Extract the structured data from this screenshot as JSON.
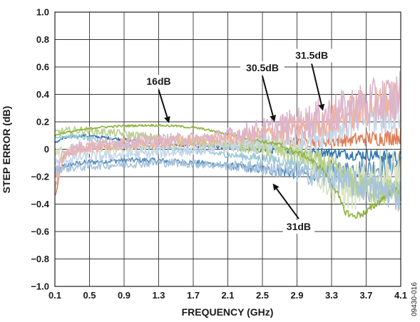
{
  "chart_data": {
    "type": "line",
    "title": "",
    "xlabel": "FREQUENCY (GHz)",
    "ylabel": "STEP ERROR (dB)",
    "xlim": [
      0.1,
      4.1
    ],
    "ylim": [
      -1.0,
      1.0
    ],
    "x_ticks": [
      "0.1",
      "0.5",
      "0.9",
      "1.3",
      "1.7",
      "2.1",
      "2.5",
      "2.9",
      "3.3",
      "3.7",
      "4.1"
    ],
    "y_ticks": [
      "1.0",
      "0.8",
      "0.6",
      "0.4",
      "0.2",
      "0",
      "−0.2",
      "−0.4",
      "−0.6",
      "−0.8",
      "−1.0"
    ],
    "grid": true,
    "legend": "none",
    "figure_id": "09430-016",
    "x": [
      0.1,
      0.2,
      0.4,
      0.6,
      0.9,
      1.2,
      1.5,
      1.8,
      2.1,
      2.4,
      2.7,
      3.0,
      3.2,
      3.35,
      3.45,
      3.55,
      3.7,
      3.85,
      4.0,
      4.1
    ],
    "series": [
      {
        "name": "16dB",
        "color": "#8db43c",
        "noise": 0.008,
        "values": [
          0.1,
          0.12,
          0.14,
          0.16,
          0.17,
          0.175,
          0.17,
          0.15,
          0.11,
          0.07,
          0.03,
          -0.05,
          -0.15,
          -0.3,
          -0.45,
          -0.49,
          -0.46,
          -0.38,
          -0.3,
          -0.3
        ]
      },
      {
        "name": "30.5dB",
        "color": "#f0b49c",
        "noise": 0.04,
        "values": [
          -0.3,
          -0.05,
          0.0,
          0.02,
          0.04,
          0.05,
          0.06,
          0.07,
          0.08,
          0.1,
          0.13,
          0.17,
          0.2,
          0.22,
          0.25,
          0.28,
          0.3,
          0.33,
          0.36,
          0.38
        ]
      },
      {
        "name": "31.5dB",
        "color": "#dcb4cc",
        "noise": 0.05,
        "values": [
          -0.2,
          -0.02,
          0.02,
          0.04,
          0.05,
          0.06,
          0.07,
          0.08,
          0.1,
          0.13,
          0.16,
          0.2,
          0.24,
          0.26,
          0.28,
          0.3,
          0.32,
          0.34,
          0.36,
          0.38
        ]
      },
      {
        "name": "31dB",
        "color": "#a7c3dc",
        "noise": 0.03,
        "values": [
          -0.15,
          -0.14,
          -0.13,
          -0.12,
          -0.11,
          -0.1,
          -0.1,
          -0.11,
          -0.12,
          -0.13,
          -0.15,
          -0.18,
          -0.2,
          -0.22,
          -0.24,
          -0.26,
          -0.28,
          -0.3,
          -0.32,
          -0.33
        ]
      }
    ],
    "background_series": [
      {
        "color": "#5b8fc0",
        "noise": 0.02,
        "values": [
          -0.2,
          -0.12,
          -0.1,
          -0.09,
          -0.08,
          -0.08,
          -0.09,
          -0.1,
          -0.12,
          -0.14,
          -0.16,
          -0.18,
          -0.17,
          -0.16,
          -0.15,
          -0.14,
          -0.14,
          -0.13,
          -0.12,
          -0.12
        ]
      },
      {
        "color": "#2f77b3",
        "noise": 0.012,
        "values": [
          0.05,
          0.08,
          0.1,
          0.09,
          0.07,
          0.05,
          0.03,
          0.02,
          0.01,
          0.0,
          -0.01,
          -0.02,
          -0.02,
          -0.03,
          -0.03,
          -0.04,
          -0.04,
          -0.05,
          -0.05,
          -0.06
        ]
      },
      {
        "color": "#e07e58",
        "noise": 0.015,
        "values": [
          -0.35,
          -0.05,
          0.0,
          0.01,
          0.02,
          0.02,
          0.03,
          0.03,
          0.04,
          0.04,
          0.05,
          0.05,
          0.06,
          0.06,
          0.07,
          0.07,
          0.08,
          0.08,
          0.09,
          0.1
        ]
      },
      {
        "color": "#9cc9d8",
        "noise": 0.02,
        "values": [
          0.08,
          0.1,
          0.09,
          0.06,
          0.03,
          0.01,
          0.0,
          -0.02,
          -0.04,
          -0.06,
          -0.08,
          -0.1,
          -0.14,
          -0.18,
          -0.2,
          -0.22,
          -0.24,
          -0.26,
          -0.28,
          -0.3
        ]
      },
      {
        "color": "#d8e3c4",
        "noise": 0.05,
        "values": [
          -0.05,
          -0.02,
          0.0,
          0.01,
          0.02,
          0.03,
          0.04,
          0.05,
          0.06,
          0.05,
          0.04,
          -0.05,
          -0.2,
          -0.25,
          -0.3,
          -0.28,
          -0.24,
          -0.2,
          -0.18,
          -0.18
        ]
      },
      {
        "color": "#b9cf8e",
        "noise": 0.03,
        "values": [
          0.12,
          0.13,
          0.14,
          0.13,
          0.11,
          0.09,
          0.07,
          0.05,
          0.03,
          0.01,
          -0.01,
          -0.05,
          -0.1,
          -0.15,
          -0.2,
          -0.25,
          -0.28,
          -0.3,
          -0.32,
          -0.34
        ]
      },
      {
        "color": "#c6d7ea",
        "noise": 0.04,
        "values": [
          -0.1,
          -0.08,
          -0.06,
          -0.05,
          -0.04,
          -0.03,
          -0.02,
          0.0,
          0.02,
          0.04,
          0.06,
          0.08,
          0.12,
          0.15,
          0.18,
          0.2,
          0.22,
          0.24,
          0.26,
          0.28
        ]
      }
    ],
    "annotations": [
      {
        "text": "16dB",
        "x": 1.3,
        "y": 0.47,
        "arrow_to": [
          1.42,
          0.19
        ]
      },
      {
        "text": "30.5dB",
        "x": 2.5,
        "y": 0.57,
        "arrow_to": [
          2.64,
          0.2
        ]
      },
      {
        "text": "31.5dB",
        "x": 3.07,
        "y": 0.66,
        "arrow_to": [
          3.2,
          0.28
        ]
      },
      {
        "text": "31dB",
        "x": 2.92,
        "y": -0.59,
        "arrow_to": [
          2.62,
          -0.25
        ]
      }
    ]
  }
}
